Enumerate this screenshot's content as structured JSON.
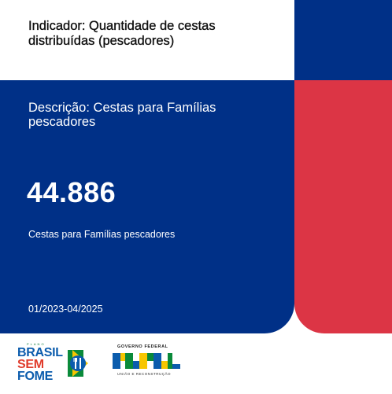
{
  "card": {
    "indicator_title": "Indicador: Quantidade de cestas distribuídas (pescadores)",
    "description": "Descrição: Cestas para Famílias pescadores",
    "value": "44.886",
    "value_caption": "Cestas para Famílias pescadores",
    "period": "01/2023-04/2025"
  },
  "logos": {
    "brasil_sem_fome": {
      "small_text": "PLANO",
      "line1": "BRASIL",
      "line2": "SEM",
      "line3": "FOME"
    },
    "governo": {
      "top": "GOVERNO FEDERAL",
      "word": "BRASIL",
      "bottom": "UNIÃO E RECONSTRUÇÃO"
    }
  },
  "colors": {
    "blue": "#003087",
    "red": "#dc3545",
    "white": "#ffffff"
  }
}
